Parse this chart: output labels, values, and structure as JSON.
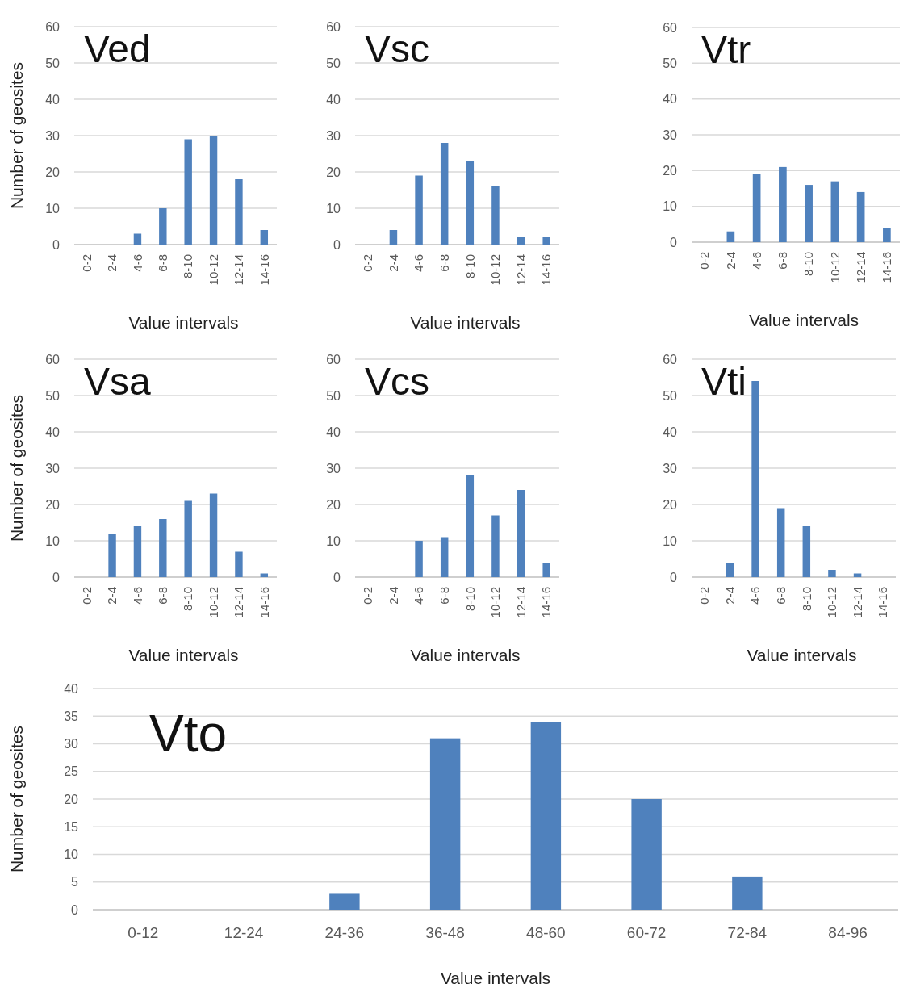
{
  "chart_data": [
    {
      "type": "bar",
      "title": "Ved",
      "ylabel": "Number of geosites",
      "xlabel": "Value intervals",
      "categories": [
        "0-2",
        "2-4",
        "4-6",
        "6-8",
        "8-10",
        "10-12",
        "12-14",
        "14-16"
      ],
      "values": [
        0,
        0,
        3,
        10,
        29,
        30,
        18,
        4
      ],
      "color": "#4f81bd",
      "ylim": [
        0,
        60
      ],
      "yticks": [
        0,
        10,
        20,
        30,
        40,
        50,
        60
      ],
      "grid": "y"
    },
    {
      "type": "bar",
      "title": "Vsc",
      "xlabel": "Value intervals",
      "categories": [
        "0-2",
        "2-4",
        "4-6",
        "6-8",
        "8-10",
        "10-12",
        "12-14",
        "14-16"
      ],
      "values": [
        0,
        4,
        19,
        28,
        23,
        16,
        2,
        2
      ],
      "color": "#4f81bd",
      "ylim": [
        0,
        60
      ],
      "yticks": [
        0,
        10,
        20,
        30,
        40,
        50,
        60
      ],
      "grid": "y"
    },
    {
      "type": "bar",
      "title": "Vtr",
      "xlabel": "Value intervals",
      "categories": [
        "0-2",
        "2-4",
        "4-6",
        "6-8",
        "8-10",
        "10-12",
        "12-14",
        "14-16"
      ],
      "values": [
        0,
        3,
        19,
        21,
        16,
        17,
        14,
        4
      ],
      "color": "#4f81bd",
      "ylim": [
        0,
        60
      ],
      "yticks": [
        0,
        10,
        20,
        30,
        40,
        50,
        60
      ],
      "grid": "y"
    },
    {
      "type": "bar",
      "title": "Vsa",
      "ylabel": "Number of geosites",
      "xlabel": "Value intervals",
      "categories": [
        "0-2",
        "2-4",
        "4-6",
        "6-8",
        "8-10",
        "10-12",
        "12-14",
        "14-16"
      ],
      "values": [
        0,
        12,
        14,
        16,
        21,
        23,
        7,
        1
      ],
      "color": "#4f81bd",
      "ylim": [
        0,
        60
      ],
      "yticks": [
        0,
        10,
        20,
        30,
        40,
        50,
        60
      ],
      "grid": "y"
    },
    {
      "type": "bar",
      "title": "Vcs",
      "xlabel": "Value intervals",
      "categories": [
        "0-2",
        "2-4",
        "4-6",
        "6-8",
        "8-10",
        "10-12",
        "12-14",
        "14-16"
      ],
      "values": [
        0,
        0,
        10,
        11,
        28,
        17,
        24,
        4
      ],
      "color": "#4f81bd",
      "ylim": [
        0,
        60
      ],
      "yticks": [
        0,
        10,
        20,
        30,
        40,
        50,
        60
      ],
      "grid": "y"
    },
    {
      "type": "bar",
      "title": "Vti",
      "xlabel": "Value intervals",
      "categories": [
        "0-2",
        "2-4",
        "4-6",
        "6-8",
        "8-10",
        "10-12",
        "12-14",
        "14-16"
      ],
      "values": [
        0,
        4,
        54,
        19,
        14,
        2,
        1,
        0
      ],
      "color": "#4f81bd",
      "ylim": [
        0,
        60
      ],
      "yticks": [
        0,
        10,
        20,
        30,
        40,
        50,
        60
      ],
      "grid": "y"
    },
    {
      "type": "bar",
      "title": "Vto",
      "ylabel": "Number of geosites",
      "xlabel": "Value intervals",
      "categories": [
        "0-12",
        "12-24",
        "24-36",
        "36-48",
        "48-60",
        "60-72",
        "72-84",
        "84-96"
      ],
      "values": [
        0,
        0,
        3,
        31,
        34,
        20,
        6,
        0
      ],
      "color": "#4f81bd",
      "ylim": [
        0,
        40
      ],
      "yticks": [
        0,
        5,
        10,
        15,
        20,
        25,
        30,
        35,
        40
      ],
      "grid": "y"
    }
  ]
}
